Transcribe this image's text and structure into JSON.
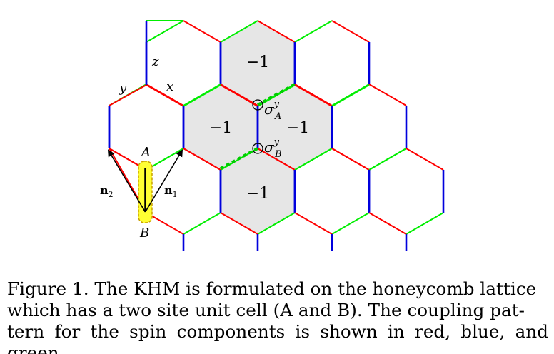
{
  "diagram": {
    "edge_colors": {
      "x": "#ff0000",
      "y": "#00ee00",
      "z": "#0000dd"
    },
    "plaquette_fill": "#e6e6e6",
    "unit_cell_fill": "#ffff33",
    "unit_cell_border": "#c8a000",
    "plaquette_label": "−1",
    "bond_labels": {
      "z": "z",
      "y": "y",
      "x": "x"
    },
    "site_labels": {
      "a": "A",
      "b": "B"
    },
    "lattice_vectors": {
      "n1_main": "n",
      "n1_sub": "1",
      "n2_main": "n",
      "n2_sub": "2"
    },
    "operators": {
      "sigma": "σ",
      "superscript": "y",
      "sub_a": "A",
      "sub_b": "B"
    }
  },
  "caption": {
    "line1": "Figure 1.  The KHM is formulated on the honeycomb lattice",
    "line2": "which has a two site unit cell (A and B). The coupling pat-",
    "line3": "tern for the spin components is shown in red, blue, and green."
  }
}
